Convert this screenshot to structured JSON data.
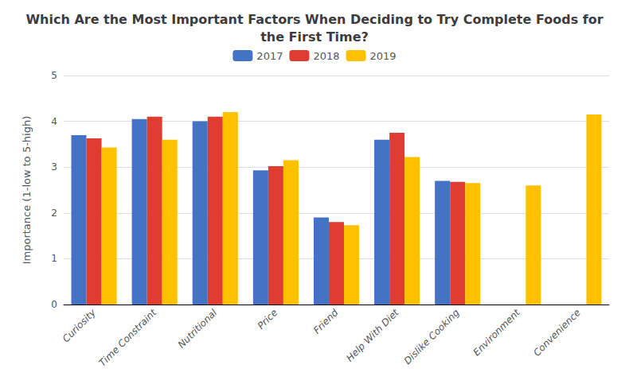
{
  "chart_data": {
    "type": "bar",
    "title": "Which Are the Most Important Factors When Deciding to Try Complete Foods for\nthe First Time?",
    "ylabel": "Importance (1-low to 5-high)",
    "categories": [
      "Curiosity",
      "Time Constraint",
      "Nutritional",
      "Price",
      "Friend",
      "Help With Diet",
      "Dislike Cooking",
      "Environment",
      "Convenience"
    ],
    "series": [
      {
        "name": "2017",
        "color": "#4472C4",
        "values": [
          3.7,
          4.05,
          4.0,
          2.93,
          1.9,
          3.6,
          2.7,
          0,
          0
        ]
      },
      {
        "name": "2018",
        "color": "#E03C31",
        "values": [
          3.63,
          4.1,
          4.1,
          3.02,
          1.8,
          3.75,
          2.68,
          0,
          0
        ]
      },
      {
        "name": "2019",
        "color": "#FFC000",
        "values": [
          3.43,
          3.6,
          4.2,
          3.15,
          1.73,
          3.22,
          2.65,
          2.6,
          4.15
        ]
      }
    ],
    "ylim": [
      0,
      5
    ],
    "yticks": [
      0,
      1,
      2,
      3,
      4,
      5
    ],
    "grid": true,
    "legend": "top"
  }
}
